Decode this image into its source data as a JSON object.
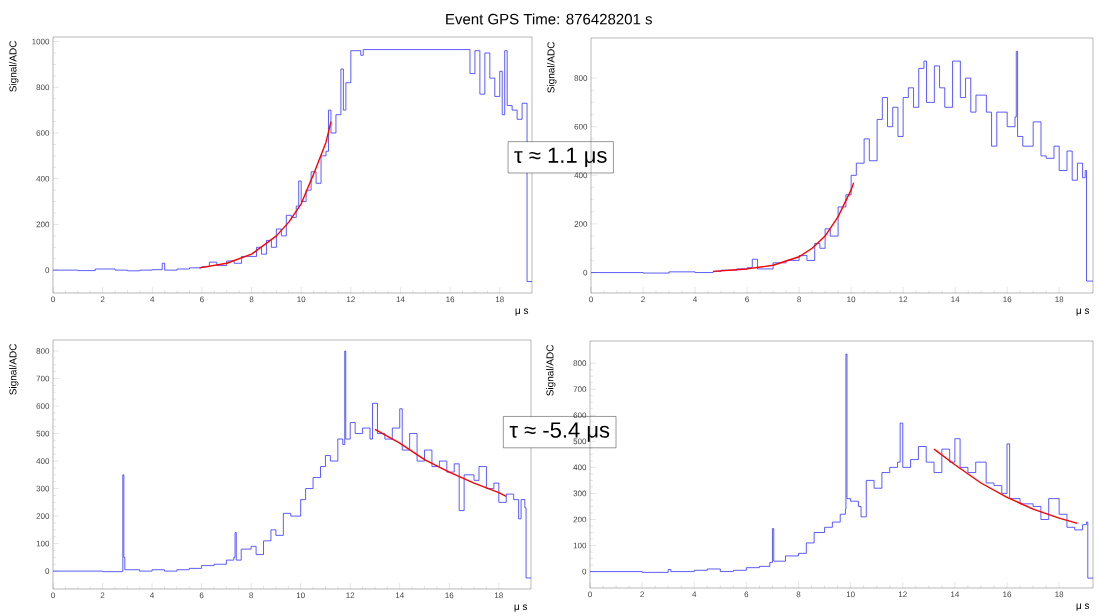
{
  "chart_data": [
    {
      "type": "step",
      "title": "Event GPS Time: 876428201 s",
      "xlabel": "μ s",
      "ylabel": "Signal/ADC",
      "annotations": [
        "τ ≈ 1.1 μs"
      ],
      "xlim": [
        0,
        19.3
      ],
      "ylim": [
        -100,
        1020
      ],
      "xticks": [
        0,
        2,
        4,
        6,
        8,
        10,
        12,
        14,
        16,
        18
      ],
      "yticks": [
        0,
        200,
        400,
        600,
        800,
        1000
      ],
      "grid": false,
      "series": [
        {
          "color": "#3333ff",
          "x": [
            0,
            0.5,
            1,
            1.7,
            2.5,
            3,
            3.5,
            4,
            4.4,
            4.5,
            5,
            5.5,
            6,
            6.3,
            6.6,
            7,
            7.3,
            7.6,
            8,
            8.2,
            8.4,
            8.6,
            8.8,
            9,
            9.2,
            9.4,
            9.6,
            9.8,
            9.9,
            10,
            10.2,
            10.4,
            10.6,
            10.8,
            11,
            11.1,
            11.2,
            11.4,
            11.6,
            11.7,
            11.8,
            12,
            12.4,
            12.5,
            16.6,
            16.8,
            17,
            17.2,
            17.4,
            17.6,
            17.8,
            18,
            18.1,
            18.2,
            18.3,
            18.5,
            18.7,
            18.9,
            19.05,
            19.1,
            19.3
          ],
          "values": [
            0,
            0,
            -2,
            5,
            0,
            -3,
            0,
            2,
            30,
            0,
            5,
            10,
            15,
            35,
            20,
            40,
            30,
            60,
            60,
            100,
            70,
            130,
            100,
            180,
            150,
            240,
            230,
            280,
            390,
            300,
            350,
            430,
            380,
            500,
            520,
            700,
            600,
            680,
            880,
            700,
            820,
            960,
            940,
            965,
            965,
            860,
            960,
            770,
            950,
            840,
            760,
            870,
            680,
            960,
            720,
            700,
            660,
            730,
            730,
            -50,
            -50
          ]
        },
        {
          "type": "line",
          "color": "#ff0000",
          "x": [
            5.9,
            7,
            8,
            9,
            9.5,
            10,
            10.5,
            11,
            11.2
          ],
          "values": [
            10,
            30,
            70,
            150,
            210,
            290,
            420,
            560,
            650
          ]
        }
      ]
    },
    {
      "type": "step",
      "xlabel": "μ s",
      "ylabel": "Signal/ADC",
      "xlim": [
        0,
        19.3
      ],
      "ylim": [
        -84,
        965
      ],
      "xticks": [
        0,
        2,
        4,
        6,
        8,
        10,
        12,
        14,
        16,
        18
      ],
      "yticks": [
        0,
        200,
        400,
        600,
        800
      ],
      "grid": false,
      "series": [
        {
          "color": "#3333ff",
          "x": [
            0,
            1,
            2,
            3,
            4,
            4.7,
            5,
            5.6,
            6,
            6.2,
            6.4,
            7,
            7.5,
            8,
            8.3,
            8.6,
            8.8,
            9,
            9.2,
            9.5,
            9.8,
            10,
            10.2,
            10.5,
            10.7,
            11,
            11.2,
            11.4,
            11.6,
            11.8,
            12,
            12.2,
            12.4,
            12.6,
            12.8,
            12.9,
            13.2,
            13.4,
            13.6,
            13.9,
            14.2,
            14.4,
            14.6,
            14.8,
            15.2,
            15.4,
            15.6,
            16,
            16.3,
            16.35,
            16.4,
            16.6,
            17,
            17.3,
            17.5,
            17.8,
            18,
            18.3,
            18.5,
            18.7,
            18.9,
            19,
            19.05,
            19.3
          ],
          "values": [
            0,
            0,
            -2,
            3,
            0,
            5,
            10,
            15,
            20,
            55,
            15,
            40,
            50,
            70,
            50,
            120,
            100,
            180,
            150,
            270,
            320,
            400,
            450,
            550,
            460,
            630,
            720,
            600,
            680,
            560,
            720,
            760,
            680,
            840,
            870,
            700,
            850,
            760,
            680,
            870,
            720,
            800,
            660,
            730,
            660,
            520,
            660,
            600,
            640,
            910,
            560,
            520,
            620,
            480,
            470,
            520,
            420,
            500,
            380,
            450,
            390,
            420,
            -35,
            -35
          ]
        },
        {
          "type": "line",
          "color": "#ff0000",
          "x": [
            4.7,
            6,
            7,
            8,
            8.5,
            9,
            9.5,
            10,
            10.1
          ],
          "values": [
            5,
            15,
            30,
            65,
            100,
            150,
            230,
            340,
            370
          ]
        }
      ]
    },
    {
      "type": "step",
      "xlabel": "μ s",
      "ylabel": "Signal/ADC",
      "annotations": [
        "τ ≈ -5.4 μs"
      ],
      "xlim": [
        0,
        19.3
      ],
      "ylim": [
        -65,
        840
      ],
      "xticks": [
        0,
        2,
        4,
        6,
        8,
        10,
        12,
        14,
        16,
        18
      ],
      "yticks": [
        0,
        100,
        200,
        300,
        400,
        500,
        600,
        700,
        800
      ],
      "grid": false,
      "series": [
        {
          "color": "#3333ff",
          "x": [
            0,
            2,
            2.8,
            2.82,
            2.86,
            2.9,
            3.5,
            4,
            4.5,
            5,
            5.5,
            6,
            6.5,
            7,
            7.3,
            7.35,
            7.4,
            7.6,
            8,
            8.2,
            8.5,
            8.8,
            9,
            9.3,
            9.6,
            10,
            10.2,
            10.5,
            10.8,
            11,
            11.2,
            11.5,
            11.7,
            11.78,
            11.82,
            12,
            12.2,
            12.5,
            12.8,
            12.9,
            13.1,
            13.4,
            13.7,
            14,
            14.1,
            14.4,
            14.7,
            15,
            15.3,
            15.6,
            15.9,
            16.2,
            16.4,
            16.6,
            17,
            17.2,
            17.5,
            17.8,
            18,
            18.3,
            18.6,
            18.8,
            18.9,
            19.05,
            19.1,
            19.3
          ],
          "values": [
            0,
            -2,
            0,
            350,
            50,
            5,
            0,
            5,
            0,
            5,
            10,
            20,
            25,
            40,
            50,
            140,
            40,
            80,
            90,
            60,
            110,
            150,
            130,
            210,
            200,
            260,
            300,
            340,
            380,
            420,
            400,
            480,
            460,
            800,
            480,
            540,
            500,
            520,
            480,
            610,
            500,
            480,
            520,
            590,
            440,
            500,
            400,
            440,
            380,
            400,
            360,
            390,
            220,
            350,
            330,
            380,
            300,
            320,
            250,
            280,
            260,
            190,
            260,
            230,
            -25,
            -25
          ]
        },
        {
          "type": "line",
          "color": "#ff0000",
          "x": [
            13,
            14,
            15,
            16,
            17,
            18,
            18.3
          ],
          "values": [
            515,
            465,
            405,
            360,
            320,
            285,
            272
          ]
        }
      ]
    },
    {
      "type": "step",
      "xlabel": "μ s",
      "ylabel": "Signal/ADC",
      "xlim": [
        0,
        19.3
      ],
      "ylim": [
        -63,
        885
      ],
      "xticks": [
        0,
        2,
        4,
        6,
        8,
        10,
        12,
        14,
        16,
        18
      ],
      "yticks": [
        0,
        100,
        200,
        300,
        400,
        500,
        600,
        700,
        800
      ],
      "grid": false,
      "series": [
        {
          "color": "#3333ff",
          "x": [
            0,
            2,
            3,
            3.1,
            4,
            4.5,
            5,
            5.5,
            6,
            6.5,
            6.9,
            7,
            7.05,
            7.5,
            8,
            8.3,
            8.6,
            9,
            9.3,
            9.6,
            9.8,
            9.82,
            9.86,
            10,
            10.3,
            10.4,
            10.6,
            10.9,
            11.2,
            11.5,
            11.8,
            11.9,
            12,
            12.3,
            12.6,
            12.9,
            13.2,
            13.5,
            13.8,
            14,
            14.2,
            14.5,
            14.8,
            15.2,
            15.5,
            15.8,
            16,
            16.1,
            16.5,
            17,
            17.3,
            17.6,
            18,
            18.3,
            18.6,
            18.9,
            19.05,
            19.1,
            19.3
          ],
          "values": [
            0,
            -3,
            8,
            0,
            5,
            10,
            0,
            5,
            15,
            20,
            35,
            165,
            40,
            60,
            70,
            110,
            150,
            170,
            190,
            220,
            240,
            835,
            280,
            270,
            250,
            210,
            350,
            320,
            380,
            400,
            420,
            570,
            400,
            430,
            480,
            420,
            380,
            470,
            420,
            510,
            400,
            380,
            420,
            340,
            330,
            300,
            490,
            280,
            260,
            250,
            200,
            280,
            220,
            170,
            160,
            180,
            190,
            -25,
            -25
          ]
        },
        {
          "type": "line",
          "color": "#ff0000",
          "x": [
            13.2,
            14,
            15,
            16,
            17,
            18,
            18.7
          ],
          "values": [
            470,
            410,
            340,
            285,
            240,
            205,
            185
          ]
        }
      ]
    }
  ]
}
